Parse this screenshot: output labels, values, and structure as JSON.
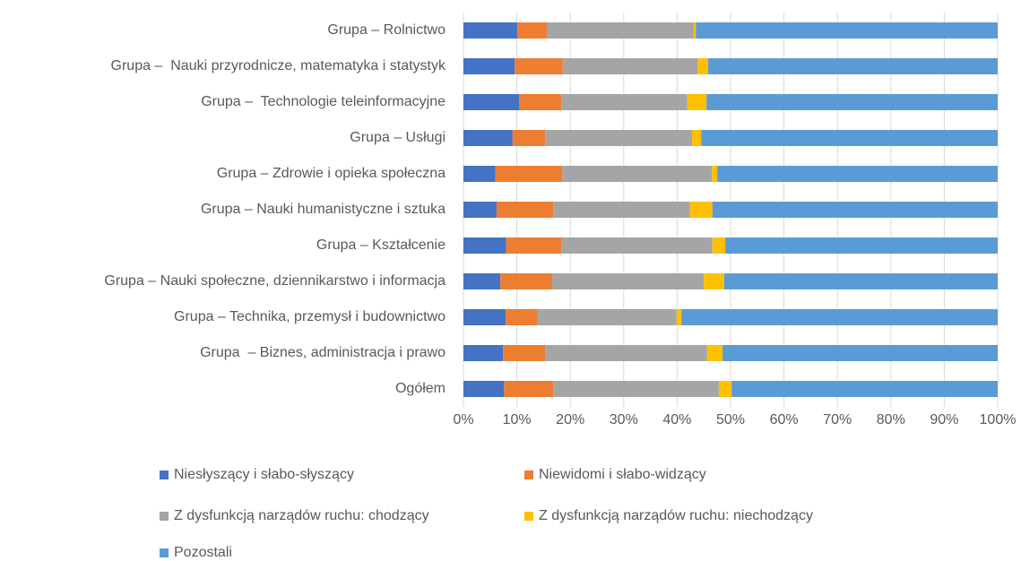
{
  "chart_data": {
    "type": "stacked_bar_horizontal",
    "categories": [
      "Grupa – Rolnictwo",
      "Grupa –  Nauki przyrodnicze, matematyka i statystyk",
      "Grupa –  Technologie teleinformacyjne",
      "Grupa – Usługi",
      "Grupa – Zdrowie i opieka społeczna",
      "Grupa – Nauki humanistyczne i sztuka",
      "Grupa – Kształcenie",
      "Grupa – Nauki społeczne, dziennikarstwo i informacja",
      "Grupa – Technika, przemysł i budownictwo",
      "Grupa  – Biznes, administracja i prawo",
      "Ogółem"
    ],
    "series": [
      {
        "name": "Niesłyszący i słabo-słyszący",
        "color": "#4472c4",
        "values": [
          10.1,
          9.6,
          10.4,
          9.2,
          6.0,
          6.2,
          8.0,
          6.9,
          7.9,
          7.4,
          7.6
        ]
      },
      {
        "name": "Niewidomi i słabo-widzący",
        "color": "#ed7d31",
        "values": [
          5.5,
          9.0,
          7.9,
          6.1,
          12.5,
          10.6,
          10.3,
          9.7,
          6.0,
          8.0,
          9.2
        ]
      },
      {
        "name": "Z dysfunkcją narządów ruchu: chodzący",
        "color": "#a5a5a5",
        "values": [
          27.5,
          25.2,
          23.6,
          27.5,
          28.0,
          25.6,
          28.3,
          28.4,
          26.0,
          30.2,
          31.0
        ]
      },
      {
        "name": "Z dysfunkcją narządów ruchu: niechodzący",
        "color": "#ffc000",
        "values": [
          0.4,
          2.0,
          3.6,
          1.7,
          1.0,
          4.2,
          2.4,
          3.8,
          0.9,
          2.9,
          2.4
        ]
      },
      {
        "name": "Pozostali",
        "color": "#5b9bd5",
        "values": [
          56.5,
          54.2,
          54.5,
          55.5,
          52.5,
          53.4,
          51.0,
          51.2,
          59.2,
          51.5,
          49.8
        ]
      }
    ],
    "xlim": [
      0,
      100
    ],
    "xticks": [
      {
        "value": 0,
        "label": "0%"
      },
      {
        "value": 10,
        "label": "10%"
      },
      {
        "value": 20,
        "label": "20%"
      },
      {
        "value": 30,
        "label": "30%"
      },
      {
        "value": 40,
        "label": "40%"
      },
      {
        "value": 50,
        "label": "50%"
      },
      {
        "value": 60,
        "label": "60%"
      },
      {
        "value": 70,
        "label": "70%"
      },
      {
        "value": 80,
        "label": "80%"
      },
      {
        "value": 90,
        "label": "90%"
      },
      {
        "value": 100,
        "label": "100%"
      }
    ],
    "grid": true
  }
}
